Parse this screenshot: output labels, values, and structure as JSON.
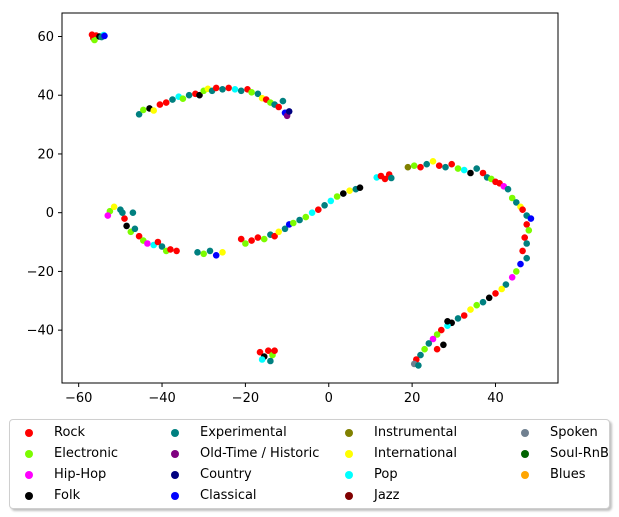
{
  "chart_data": {
    "type": "scatter",
    "title": "",
    "xlabel": "",
    "ylabel": "",
    "xlim": [
      -64,
      55
    ],
    "ylim": [
      -58,
      68
    ],
    "xticks": [
      -60,
      -40,
      -20,
      0,
      20,
      40
    ],
    "yticks": [
      -40,
      -20,
      0,
      20,
      40,
      60
    ],
    "grid": false,
    "legend_position": "bottom",
    "legend_columns": 4,
    "series": [
      {
        "name": "Rock",
        "color": "#ff0000"
      },
      {
        "name": "Electronic",
        "color": "#7cfc00"
      },
      {
        "name": "Hip-Hop",
        "color": "#ff00ff"
      },
      {
        "name": "Folk",
        "color": "#000000"
      },
      {
        "name": "Experimental",
        "color": "#008080"
      },
      {
        "name": "Old-Time / Historic",
        "color": "#800080"
      },
      {
        "name": "Country",
        "color": "#000080"
      },
      {
        "name": "Classical",
        "color": "#0000ff"
      },
      {
        "name": "Instrumental",
        "color": "#808000"
      },
      {
        "name": "International",
        "color": "#ffff00"
      },
      {
        "name": "Pop",
        "color": "#00ffff"
      },
      {
        "name": "Jazz",
        "color": "#800000"
      },
      {
        "name": "Spoken",
        "color": "#708090"
      },
      {
        "name": "Soul-RnB",
        "color": "#006400"
      },
      {
        "name": "Blues",
        "color": "#ffa500"
      }
    ],
    "points": [
      {
        "x": -56.5,
        "y": 59.5,
        "s": 0
      },
      {
        "x": -55.8,
        "y": 60.3,
        "s": 0
      },
      {
        "x": -56.2,
        "y": 58.8,
        "s": 1
      },
      {
        "x": -55.0,
        "y": 60.0,
        "s": 3
      },
      {
        "x": -54.0,
        "y": 60.5,
        "s": 10
      },
      {
        "x": -54.5,
        "y": 59.8,
        "s": 4
      },
      {
        "x": -56.8,
        "y": 60.6,
        "s": 0
      },
      {
        "x": -53.8,
        "y": 60.2,
        "s": 7
      },
      {
        "x": -45.5,
        "y": 33.5,
        "s": 4
      },
      {
        "x": -44.5,
        "y": 35.0,
        "s": 1
      },
      {
        "x": -43.0,
        "y": 35.5,
        "s": 3
      },
      {
        "x": -42.0,
        "y": 34.8,
        "s": 9
      },
      {
        "x": -40.5,
        "y": 36.8,
        "s": 0
      },
      {
        "x": -39.0,
        "y": 37.5,
        "s": 0
      },
      {
        "x": -37.5,
        "y": 38.5,
        "s": 4
      },
      {
        "x": -36.0,
        "y": 39.5,
        "s": 10
      },
      {
        "x": -35.0,
        "y": 38.8,
        "s": 1
      },
      {
        "x": -33.5,
        "y": 40.0,
        "s": 4
      },
      {
        "x": -32.0,
        "y": 40.5,
        "s": 0
      },
      {
        "x": -31.0,
        "y": 40.0,
        "s": 3
      },
      {
        "x": -30.0,
        "y": 41.5,
        "s": 1
      },
      {
        "x": -29.0,
        "y": 42.2,
        "s": 9
      },
      {
        "x": -28.0,
        "y": 41.5,
        "s": 4
      },
      {
        "x": -27.0,
        "y": 42.5,
        "s": 0
      },
      {
        "x": -25.5,
        "y": 42.0,
        "s": 4
      },
      {
        "x": -24.0,
        "y": 42.5,
        "s": 0
      },
      {
        "x": -22.5,
        "y": 42.0,
        "s": 10
      },
      {
        "x": -21.0,
        "y": 41.5,
        "s": 4
      },
      {
        "x": -19.5,
        "y": 42.0,
        "s": 0
      },
      {
        "x": -18.5,
        "y": 41.0,
        "s": 1
      },
      {
        "x": -17.0,
        "y": 40.5,
        "s": 4
      },
      {
        "x": -16.0,
        "y": 39.0,
        "s": 9
      },
      {
        "x": -15.0,
        "y": 38.5,
        "s": 0
      },
      {
        "x": -14.0,
        "y": 37.5,
        "s": 1
      },
      {
        "x": -13.0,
        "y": 36.8,
        "s": 4
      },
      {
        "x": -12.0,
        "y": 36.0,
        "s": 0
      },
      {
        "x": -11.0,
        "y": 38.0,
        "s": 4
      },
      {
        "x": -10.5,
        "y": 34.0,
        "s": 7
      },
      {
        "x": -10.0,
        "y": 33.0,
        "s": 5
      },
      {
        "x": -9.5,
        "y": 34.5,
        "s": 6
      },
      {
        "x": -52.5,
        "y": 0.5,
        "s": 1
      },
      {
        "x": -53.0,
        "y": -1.0,
        "s": 2
      },
      {
        "x": -51.5,
        "y": 2.0,
        "s": 9
      },
      {
        "x": -50.0,
        "y": 1.0,
        "s": 4
      },
      {
        "x": -49.0,
        "y": -2.0,
        "s": 0
      },
      {
        "x": -48.5,
        "y": -4.5,
        "s": 3
      },
      {
        "x": -47.5,
        "y": -6.5,
        "s": 1
      },
      {
        "x": -46.5,
        "y": -5.5,
        "s": 4
      },
      {
        "x": -45.5,
        "y": -8.0,
        "s": 0
      },
      {
        "x": -44.5,
        "y": -9.5,
        "s": 1
      },
      {
        "x": -43.5,
        "y": -10.5,
        "s": 2
      },
      {
        "x": -42.0,
        "y": -11.0,
        "s": 10
      },
      {
        "x": -41.0,
        "y": -10.0,
        "s": 0
      },
      {
        "x": -40.0,
        "y": -11.5,
        "s": 4
      },
      {
        "x": -39.0,
        "y": -13.0,
        "s": 1
      },
      {
        "x": -38.0,
        "y": -12.5,
        "s": 0
      },
      {
        "x": -36.5,
        "y": -13.0,
        "s": 0
      },
      {
        "x": -31.5,
        "y": -13.5,
        "s": 4
      },
      {
        "x": -30.0,
        "y": -14.0,
        "s": 1
      },
      {
        "x": -28.5,
        "y": -13.0,
        "s": 4
      },
      {
        "x": -27.0,
        "y": -14.5,
        "s": 7
      },
      {
        "x": -25.5,
        "y": -13.5,
        "s": 9
      },
      {
        "x": -49.5,
        "y": 0.0,
        "s": 4
      },
      {
        "x": -47.0,
        "y": 0.0,
        "s": 4
      },
      {
        "x": -21.0,
        "y": -9.0,
        "s": 0
      },
      {
        "x": -20.0,
        "y": -10.5,
        "s": 1
      },
      {
        "x": -18.5,
        "y": -9.5,
        "s": 0
      },
      {
        "x": -17.0,
        "y": -8.5,
        "s": 0
      },
      {
        "x": -15.5,
        "y": -9.0,
        "s": 1
      },
      {
        "x": -14.0,
        "y": -7.5,
        "s": 4
      },
      {
        "x": -13.0,
        "y": -8.0,
        "s": 0
      },
      {
        "x": -12.0,
        "y": -6.5,
        "s": 9
      },
      {
        "x": -10.5,
        "y": -5.5,
        "s": 4
      },
      {
        "x": -9.5,
        "y": -4.0,
        "s": 7
      },
      {
        "x": -8.5,
        "y": -3.5,
        "s": 1
      },
      {
        "x": -7.0,
        "y": -2.5,
        "s": 4
      },
      {
        "x": -5.5,
        "y": -1.5,
        "s": 1
      },
      {
        "x": -4.0,
        "y": 0.0,
        "s": 10
      },
      {
        "x": -2.5,
        "y": 1.0,
        "s": 0
      },
      {
        "x": -1.0,
        "y": 2.5,
        "s": 4
      },
      {
        "x": 0.5,
        "y": 4.0,
        "s": 10
      },
      {
        "x": 2.0,
        "y": 5.5,
        "s": 1
      },
      {
        "x": 3.5,
        "y": 6.5,
        "s": 3
      },
      {
        "x": 5.0,
        "y": 7.5,
        "s": 9
      },
      {
        "x": 6.5,
        "y": 8.0,
        "s": 4
      },
      {
        "x": 7.5,
        "y": 8.5,
        "s": 3
      },
      {
        "x": 11.5,
        "y": 12.0,
        "s": 10
      },
      {
        "x": 12.5,
        "y": 12.5,
        "s": 0
      },
      {
        "x": 13.5,
        "y": 11.5,
        "s": 0
      },
      {
        "x": 14.5,
        "y": 13.0,
        "s": 0
      },
      {
        "x": 15.0,
        "y": 11.8,
        "s": 4
      },
      {
        "x": 19.0,
        "y": 15.5,
        "s": 8
      },
      {
        "x": 20.5,
        "y": 16.0,
        "s": 1
      },
      {
        "x": 22.0,
        "y": 15.5,
        "s": 0
      },
      {
        "x": 23.5,
        "y": 16.5,
        "s": 4
      },
      {
        "x": 25.0,
        "y": 17.5,
        "s": 9
      },
      {
        "x": 26.5,
        "y": 16.0,
        "s": 0
      },
      {
        "x": 28.0,
        "y": 15.5,
        "s": 4
      },
      {
        "x": 29.5,
        "y": 16.5,
        "s": 0
      },
      {
        "x": 31.0,
        "y": 15.0,
        "s": 1
      },
      {
        "x": 32.5,
        "y": 14.5,
        "s": 10
      },
      {
        "x": 34.0,
        "y": 13.5,
        "s": 3
      },
      {
        "x": 35.5,
        "y": 15.0,
        "s": 4
      },
      {
        "x": 37.0,
        "y": 13.5,
        "s": 0
      },
      {
        "x": 38.0,
        "y": 12.0,
        "s": 4
      },
      {
        "x": 39.0,
        "y": 11.5,
        "s": 1
      },
      {
        "x": 40.0,
        "y": 10.5,
        "s": 0
      },
      {
        "x": 41.0,
        "y": 10.0,
        "s": 0
      },
      {
        "x": 42.0,
        "y": 9.0,
        "s": 2
      },
      {
        "x": 43.0,
        "y": 8.0,
        "s": 4
      },
      {
        "x": 44.0,
        "y": 5.0,
        "s": 1
      },
      {
        "x": 45.0,
        "y": 3.5,
        "s": 4
      },
      {
        "x": 46.0,
        "y": 2.0,
        "s": 9
      },
      {
        "x": 46.5,
        "y": 1.0,
        "s": 0
      },
      {
        "x": 47.5,
        "y": -1.0,
        "s": 4
      },
      {
        "x": 48.5,
        "y": -2.0,
        "s": 7
      },
      {
        "x": 47.5,
        "y": -4.0,
        "s": 0
      },
      {
        "x": 48.0,
        "y": -6.0,
        "s": 1
      },
      {
        "x": 47.0,
        "y": -8.5,
        "s": 0
      },
      {
        "x": 47.5,
        "y": -10.5,
        "s": 4
      },
      {
        "x": 46.5,
        "y": -13.0,
        "s": 0
      },
      {
        "x": 47.5,
        "y": -15.5,
        "s": 4
      },
      {
        "x": 46.0,
        "y": -17.5,
        "s": 7
      },
      {
        "x": 45.0,
        "y": -20.0,
        "s": 1
      },
      {
        "x": 44.0,
        "y": -22.0,
        "s": 2
      },
      {
        "x": 42.5,
        "y": -24.5,
        "s": 4
      },
      {
        "x": 41.5,
        "y": -26.0,
        "s": 9
      },
      {
        "x": 40.0,
        "y": -27.5,
        "s": 0
      },
      {
        "x": 38.5,
        "y": -29.0,
        "s": 3
      },
      {
        "x": 37.0,
        "y": -30.5,
        "s": 4
      },
      {
        "x": 35.5,
        "y": -31.5,
        "s": 1
      },
      {
        "x": 34.0,
        "y": -33.0,
        "s": 9
      },
      {
        "x": 32.5,
        "y": -35.0,
        "s": 0
      },
      {
        "x": 31.0,
        "y": -36.0,
        "s": 4
      },
      {
        "x": 29.5,
        "y": -37.5,
        "s": 3
      },
      {
        "x": 28.5,
        "y": -38.5,
        "s": 10
      },
      {
        "x": 27.0,
        "y": -40.0,
        "s": 0
      },
      {
        "x": 26.0,
        "y": -41.5,
        "s": 1
      },
      {
        "x": 25.0,
        "y": -43.0,
        "s": 2
      },
      {
        "x": 24.0,
        "y": -44.5,
        "s": 4
      },
      {
        "x": 23.0,
        "y": -46.5,
        "s": 1
      },
      {
        "x": 22.0,
        "y": -48.5,
        "s": 4
      },
      {
        "x": 21.0,
        "y": -50.0,
        "s": 0
      },
      {
        "x": 20.5,
        "y": -51.5,
        "s": 12
      },
      {
        "x": 21.5,
        "y": -52.0,
        "s": 4
      },
      {
        "x": 27.5,
        "y": -45.0,
        "s": 3
      },
      {
        "x": 26.0,
        "y": -46.5,
        "s": 0
      },
      {
        "x": 28.5,
        "y": -37.0,
        "s": 3
      },
      {
        "x": -16.5,
        "y": -47.5,
        "s": 0
      },
      {
        "x": -15.5,
        "y": -49.0,
        "s": 3
      },
      {
        "x": -14.5,
        "y": -47.0,
        "s": 0
      },
      {
        "x": -13.5,
        "y": -48.5,
        "s": 1
      },
      {
        "x": -14.0,
        "y": -50.5,
        "s": 4
      },
      {
        "x": -16.0,
        "y": -50.0,
        "s": 10
      },
      {
        "x": -13.0,
        "y": -47.0,
        "s": 0
      }
    ]
  }
}
